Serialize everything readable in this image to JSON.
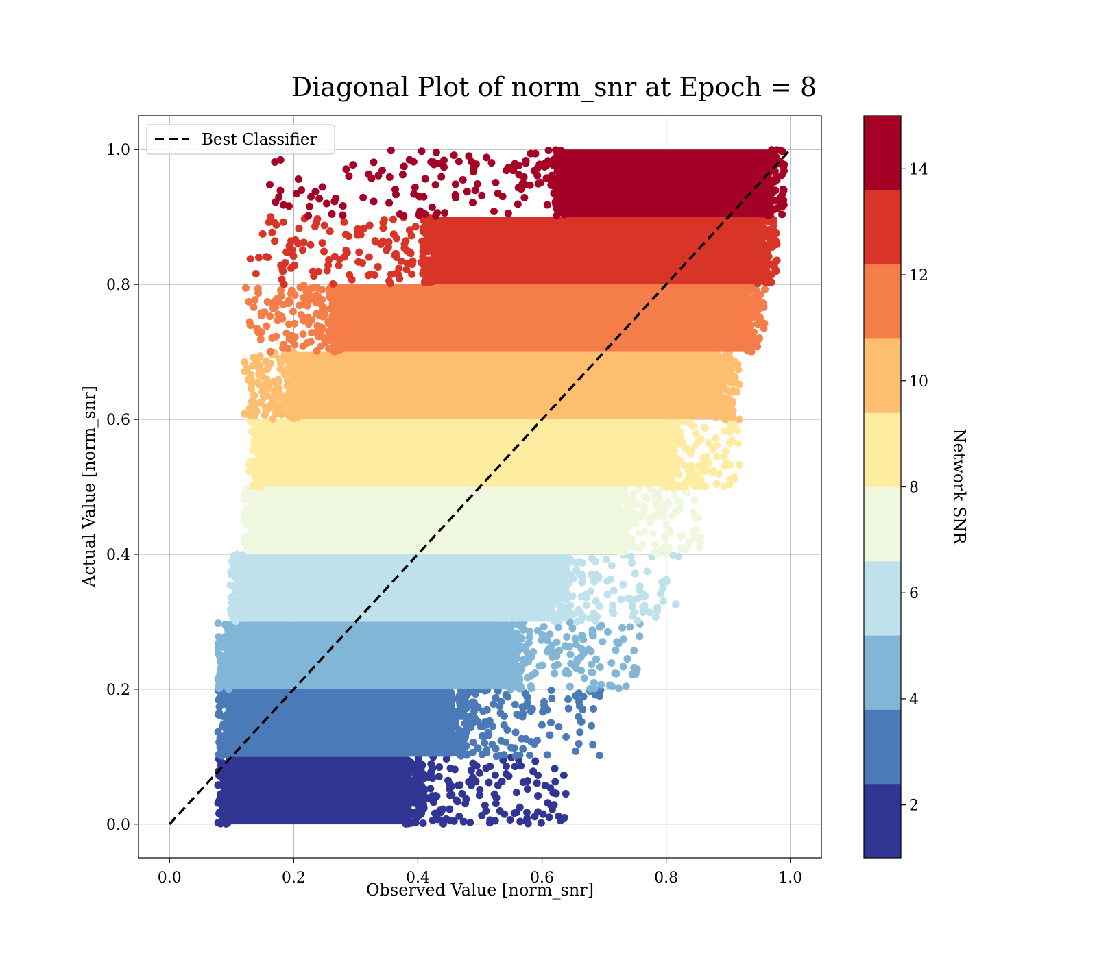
{
  "chart_data": {
    "type": "scatter",
    "title": "Diagonal Plot of norm_snr at Epoch = 8",
    "xlabel": "Observed Value [norm_snr]",
    "ylabel": "Actual Value [norm_snr]",
    "xlim": [
      -0.05,
      1.05
    ],
    "ylim": [
      -0.05,
      1.05
    ],
    "xticks": [
      "0.0",
      "0.2",
      "0.4",
      "0.6",
      "0.8",
      "1.0"
    ],
    "yticks": [
      "0.0",
      "0.2",
      "0.4",
      "0.6",
      "0.8",
      "1.0"
    ],
    "grid": true,
    "reference_line": {
      "label": "Best Classifier",
      "x": [
        0,
        1
      ],
      "y": [
        0,
        1
      ],
      "style": "dashed",
      "color": "#000000"
    },
    "legend": {
      "position": "upper-left",
      "entries": [
        "Best Classifier"
      ]
    },
    "colorbar": {
      "label": "Network SNR",
      "range": [
        1,
        15
      ],
      "ticks": [
        "2",
        "4",
        "6",
        "8",
        "10",
        "12",
        "14"
      ],
      "tick_values": [
        2,
        4,
        6,
        8,
        10,
        12,
        14
      ],
      "colormap": "RdYlBu_r",
      "levels": [
        {
          "actual_min": 0.0,
          "actual_max": 0.1,
          "color": "#313695",
          "obs_core": [
            0.09,
            0.39
          ],
          "obs_tail": [
            0.39,
            0.64
          ]
        },
        {
          "actual_min": 0.1,
          "actual_max": 0.2,
          "color": "#4a7ab7",
          "obs_core": [
            0.09,
            0.46
          ],
          "obs_tail": [
            0.46,
            0.7
          ]
        },
        {
          "actual_min": 0.2,
          "actual_max": 0.3,
          "color": "#81b6d6",
          "obs_core": [
            0.09,
            0.55
          ],
          "obs_tail": [
            0.55,
            0.76
          ]
        },
        {
          "actual_min": 0.3,
          "actual_max": 0.4,
          "color": "#bfe1ec",
          "obs_core": [
            0.11,
            0.62
          ],
          "obs_tail": [
            0.62,
            0.82
          ]
        },
        {
          "actual_min": 0.4,
          "actual_max": 0.5,
          "color": "#eff7df",
          "obs_core": [
            0.13,
            0.72
          ],
          "obs_tail": [
            0.72,
            0.86
          ]
        },
        {
          "actual_min": 0.5,
          "actual_max": 0.6,
          "color": "#feeda1",
          "obs_core": [
            0.14,
            0.8
          ],
          "obs_tail": [
            0.8,
            0.92
          ]
        },
        {
          "actual_min": 0.6,
          "actual_max": 0.7,
          "color": "#fdbe6f",
          "obs_core": [
            0.2,
            0.89
          ],
          "obs_tail": [
            0.12,
            0.92
          ]
        },
        {
          "actual_min": 0.7,
          "actual_max": 0.8,
          "color": "#f57d4a",
          "obs_core": [
            0.27,
            0.93
          ],
          "obs_tail": [
            0.12,
            0.96
          ]
        },
        {
          "actual_min": 0.8,
          "actual_max": 0.9,
          "color": "#d93428",
          "obs_core": [
            0.42,
            0.96
          ],
          "obs_tail": [
            0.13,
            0.97
          ]
        },
        {
          "actual_min": 0.9,
          "actual_max": 1.0,
          "color": "#a50026",
          "obs_core": [
            0.63,
            0.97
          ],
          "obs_tail": [
            0.16,
            0.97
          ]
        }
      ]
    }
  }
}
